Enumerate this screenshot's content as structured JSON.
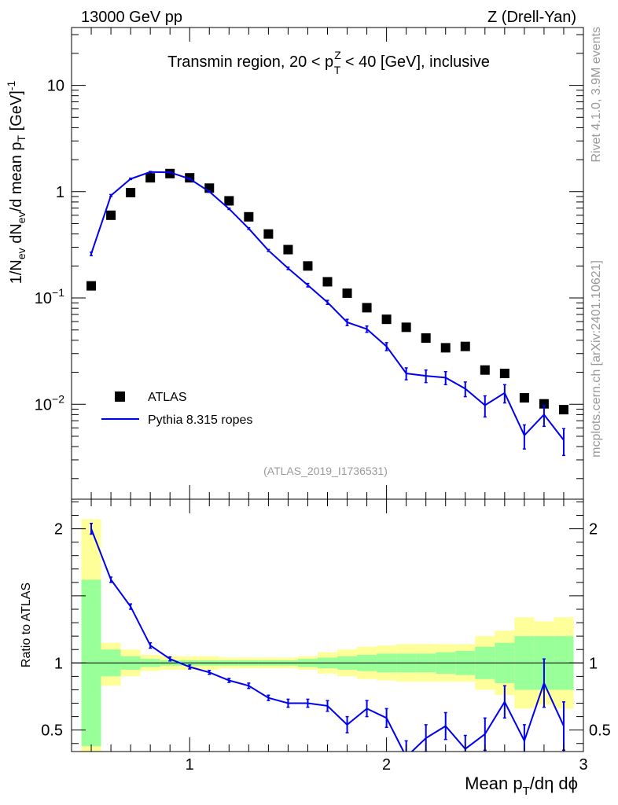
{
  "header": {
    "left": "13000 GeV pp",
    "right": "Z (Drell-Yan)"
  },
  "side_labels": {
    "rivet": "Rivet 4.1.0,  3.9M events",
    "mcplots": "mcplots.cern.ch [arXiv:2401.10621]"
  },
  "colors": {
    "data": "#000000",
    "mc": "#0000ee",
    "band_inner": "#99ff99",
    "band_outer": "#ffff99",
    "watermark": "#999999"
  },
  "chart_data": [
    {
      "id": "main",
      "type": "scatter",
      "title": "Transmin region, 20 < p_T^Z < 40 [GeV], inclusive",
      "title_parts": {
        "prefix": "Transmin region, 20 < p",
        "sub": "T",
        "sup": "Z",
        "suffix": " < 40 [GeV], inclusive"
      },
      "analysis_id": "(ATLAS_2019_I1736531)",
      "ylabel": "1/N_ev dN_ev/d mean p_T [GeV]^-1",
      "xlabel": "",
      "yscale": "log",
      "xlim": [
        0.4,
        3.0
      ],
      "ylim": [
        0.00128,
        35
      ],
      "yticks": [
        "10^-2",
        "10^-1",
        "1",
        "10"
      ],
      "legend": [
        {
          "name": "ATLAS",
          "marker": "square"
        },
        {
          "name": "Pythia 8.315 ropes",
          "marker": "line"
        }
      ],
      "series": [
        {
          "name": "ATLAS",
          "x": [
            0.5,
            0.6,
            0.7,
            0.8,
            0.9,
            1.0,
            1.1,
            1.2,
            1.3,
            1.4,
            1.5,
            1.6,
            1.7,
            1.8,
            1.9,
            2.0,
            2.1,
            2.2,
            2.3,
            2.4,
            2.5,
            2.6,
            2.7,
            2.8,
            2.9
          ],
          "y": [
            0.13,
            0.6,
            0.98,
            1.35,
            1.48,
            1.35,
            1.08,
            0.82,
            0.58,
            0.4,
            0.285,
            0.2,
            0.142,
            0.111,
            0.081,
            0.063,
            0.053,
            0.042,
            0.034,
            0.035,
            0.021,
            0.0195,
            0.0115,
            0.0101,
            0.0089
          ]
        },
        {
          "name": "Pythia 8.315 ropes",
          "x": [
            0.5,
            0.6,
            0.7,
            0.8,
            0.9,
            1.0,
            1.1,
            1.2,
            1.3,
            1.4,
            1.5,
            1.6,
            1.7,
            1.8,
            1.9,
            2.0,
            2.1,
            2.2,
            2.3,
            2.4,
            2.5,
            2.6,
            2.7,
            2.8,
            2.9
          ],
          "y": [
            0.26,
            0.92,
            1.32,
            1.53,
            1.52,
            1.32,
            1.0,
            0.69,
            0.45,
            0.28,
            0.19,
            0.132,
            0.091,
            0.059,
            0.051,
            0.035,
            0.0195,
            0.0185,
            0.0178,
            0.014,
            0.0098,
            0.0128,
            0.0051,
            0.008,
            0.0046
          ],
          "err": [
            0.01,
            0.02,
            0.02,
            0.02,
            0.02,
            0.02,
            0.015,
            0.01,
            0.008,
            0.006,
            0.005,
            0.005,
            0.004,
            0.004,
            0.0035,
            0.003,
            0.0025,
            0.0025,
            0.0025,
            0.0022,
            0.0022,
            0.0025,
            0.0013,
            0.0018,
            0.0013
          ]
        }
      ]
    },
    {
      "id": "ratio",
      "type": "line",
      "ylabel": "Ratio to ATLAS",
      "xlabel": "Mean p_T/dη dϕ",
      "xlim": [
        0.4,
        3.0
      ],
      "ylim": [
        0.34,
        2.22
      ],
      "yticks": [
        0.5,
        1,
        2
      ],
      "xticks": [
        1,
        2,
        3
      ],
      "reference": 1,
      "band_edges": [
        0.45,
        0.55,
        0.65,
        0.75,
        0.85,
        0.95,
        1.05,
        1.15,
        1.25,
        1.35,
        1.45,
        1.55,
        1.65,
        1.75,
        1.85,
        1.95,
        2.05,
        2.15,
        2.25,
        2.35,
        2.45,
        2.55,
        2.65,
        2.75,
        2.85,
        2.95
      ],
      "band_inner": [
        0.38,
        0.9,
        0.95,
        0.97,
        0.98,
        0.98,
        0.98,
        0.98,
        0.98,
        0.98,
        0.98,
        0.97,
        0.96,
        0.95,
        0.94,
        0.93,
        0.93,
        0.93,
        0.92,
        0.91,
        0.88,
        0.85,
        0.8,
        0.8,
        0.8
      ],
      "band_inner_high": [
        1.62,
        1.1,
        1.05,
        1.03,
        1.02,
        1.02,
        1.02,
        1.02,
        1.02,
        1.02,
        1.02,
        1.03,
        1.04,
        1.05,
        1.06,
        1.07,
        1.07,
        1.07,
        1.08,
        1.09,
        1.12,
        1.15,
        1.2,
        1.2,
        1.2
      ],
      "band_outer_low": [
        0.34,
        0.83,
        0.9,
        0.94,
        0.95,
        0.95,
        0.95,
        0.96,
        0.96,
        0.96,
        0.96,
        0.95,
        0.92,
        0.9,
        0.88,
        0.87,
        0.86,
        0.86,
        0.86,
        0.86,
        0.8,
        0.76,
        0.66,
        0.69,
        0.66
      ],
      "band_outer_high": [
        2.07,
        1.15,
        1.1,
        1.06,
        1.05,
        1.05,
        1.05,
        1.04,
        1.04,
        1.04,
        1.04,
        1.05,
        1.08,
        1.1,
        1.12,
        1.13,
        1.14,
        1.14,
        1.14,
        1.14,
        1.2,
        1.24,
        1.34,
        1.31,
        1.34
      ],
      "series": [
        {
          "name": "Pythia 8.315 ropes / ATLAS",
          "x": [
            0.5,
            0.6,
            0.7,
            0.8,
            0.9,
            1.0,
            1.1,
            1.2,
            1.3,
            1.4,
            1.5,
            1.6,
            1.7,
            1.8,
            1.9,
            2.0,
            2.1,
            2.2,
            2.3,
            2.4,
            2.5,
            2.6,
            2.7,
            2.8,
            2.9
          ],
          "y": [
            2.0,
            1.62,
            1.42,
            1.13,
            1.03,
            0.97,
            0.93,
            0.87,
            0.83,
            0.74,
            0.7,
            0.7,
            0.68,
            0.54,
            0.66,
            0.59,
            0.3,
            0.44,
            0.53,
            0.36,
            0.47,
            0.71,
            0.42,
            0.85,
            0.53
          ],
          "err": [
            0.04,
            0.02,
            0.02,
            0.02,
            0.015,
            0.015,
            0.015,
            0.015,
            0.02,
            0.02,
            0.03,
            0.03,
            0.04,
            0.06,
            0.06,
            0.07,
            0.12,
            0.1,
            0.1,
            0.1,
            0.12,
            0.12,
            0.12,
            0.18,
            0.18
          ]
        }
      ]
    }
  ]
}
